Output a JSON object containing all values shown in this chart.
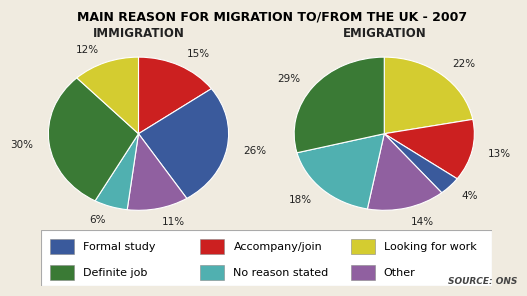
{
  "title": "MAIN REASON FOR MIGRATION TO/FROM THE UK - 2007",
  "immigration_title": "IMMIGRATION",
  "emigration_title": "EMIGRATION",
  "source_text": "SOURCE: ONS",
  "categories": [
    "Formal study",
    "Accompany/join",
    "Looking for work",
    "Definite job",
    "No reason stated",
    "Other"
  ],
  "colors": {
    "formal_study": "#3a5a9c",
    "accompany_join": "#cc2020",
    "looking_for_work": "#d4cc30",
    "definite_job": "#3a7a35",
    "no_reason_stated": "#50b0b0",
    "other": "#9060a0"
  },
  "imm_order": [
    "accompany_join",
    "formal_study",
    "other",
    "no_reason_stated",
    "definite_job",
    "looking_for_work"
  ],
  "imm_values": [
    15,
    26,
    11,
    6,
    30,
    12
  ],
  "imm_labels": [
    "15%",
    "26%",
    "11%",
    "6%",
    "30%",
    "12%"
  ],
  "emi_order": [
    "looking_for_work",
    "accompany_join",
    "formal_study",
    "other",
    "no_reason_stated",
    "definite_job"
  ],
  "emi_values": [
    22,
    13,
    4,
    14,
    18,
    29
  ],
  "emi_labels": [
    "22%",
    "13%",
    "4%",
    "14%",
    "18%",
    "29%"
  ],
  "background_color": "#f0ebe0",
  "title_fontsize": 9,
  "subtitle_fontsize": 8.5,
  "label_fontsize": 7.5,
  "legend_fontsize": 8
}
